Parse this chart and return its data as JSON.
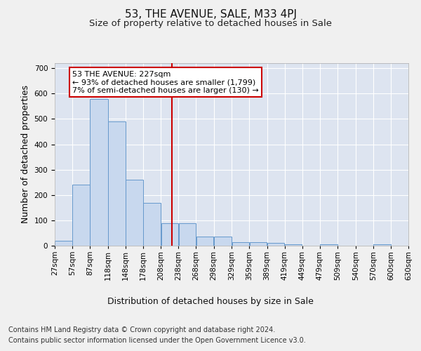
{
  "title": "53, THE AVENUE, SALE, M33 4PJ",
  "subtitle": "Size of property relative to detached houses in Sale",
  "xlabel": "Distribution of detached houses by size in Sale",
  "ylabel": "Number of detached properties",
  "footer_line1": "Contains HM Land Registry data © Crown copyright and database right 2024.",
  "footer_line2": "Contains public sector information licensed under the Open Government Licence v3.0.",
  "annotation_title": "53 THE AVENUE: 227sqm",
  "annotation_line1": "← 93% of detached houses are smaller (1,799)",
  "annotation_line2": "7% of semi-detached houses are larger (130) →",
  "property_size": 227,
  "bin_edges": [
    27,
    57,
    87,
    118,
    148,
    178,
    208,
    238,
    268,
    298,
    329,
    359,
    389,
    419,
    449,
    479,
    509,
    540,
    570,
    600,
    630
  ],
  "bar_heights": [
    20,
    240,
    580,
    490,
    260,
    170,
    90,
    90,
    35,
    35,
    15,
    15,
    10,
    5,
    0,
    5,
    0,
    0,
    5,
    0
  ],
  "bar_color": "#c8d8ee",
  "bar_edge_color": "#6699cc",
  "vline_color": "#cc0000",
  "vline_x": 227,
  "annotation_box_color": "#ffffff",
  "annotation_box_edge": "#cc0000",
  "ylim": [
    0,
    720
  ],
  "yticks": [
    0,
    100,
    200,
    300,
    400,
    500,
    600,
    700
  ],
  "background_color": "#f0f0f0",
  "plot_bg_color": "#dde4f0",
  "title_fontsize": 11,
  "subtitle_fontsize": 9.5,
  "axis_label_fontsize": 9,
  "tick_fontsize": 7.5,
  "footer_fontsize": 7,
  "annotation_fontsize": 8
}
